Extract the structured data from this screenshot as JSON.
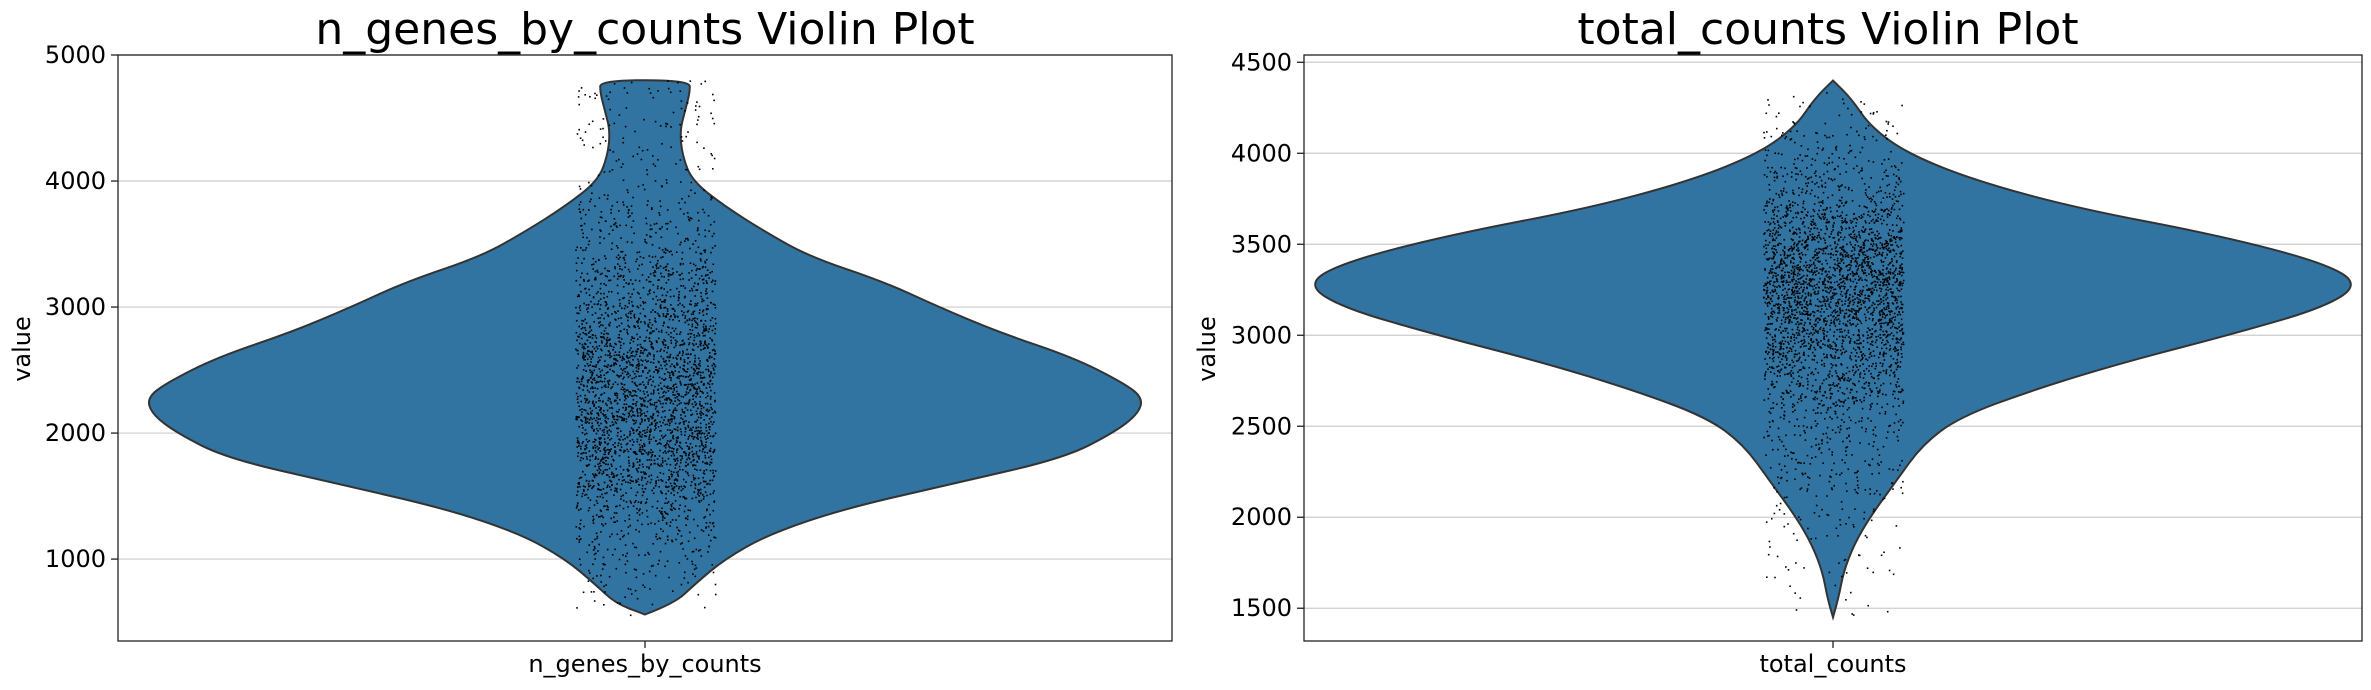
{
  "chart_data": [
    {
      "type": "violin",
      "title": "n_genes_by_counts Violin Plot",
      "xlabel": "",
      "ylabel": "value",
      "categories": [
        "n_genes_by_counts"
      ],
      "ylim": [
        350,
        5000
      ],
      "yticks": [
        1000,
        2000,
        3000,
        4000,
        5000
      ],
      "grid": true,
      "color": "#3274a1",
      "strip_color": "#000000",
      "min": 560,
      "max": 4800,
      "median": 2300,
      "density": [
        [
          560,
          0.0
        ],
        [
          650,
          0.06
        ],
        [
          800,
          0.1
        ],
        [
          1000,
          0.16
        ],
        [
          1200,
          0.25
        ],
        [
          1400,
          0.4
        ],
        [
          1600,
          0.62
        ],
        [
          1800,
          0.84
        ],
        [
          2000,
          0.94
        ],
        [
          2150,
          0.99
        ],
        [
          2280,
          1.0
        ],
        [
          2400,
          0.96
        ],
        [
          2600,
          0.86
        ],
        [
          2800,
          0.71
        ],
        [
          3000,
          0.59
        ],
        [
          3200,
          0.48
        ],
        [
          3400,
          0.33
        ],
        [
          3600,
          0.24
        ],
        [
          3800,
          0.16
        ],
        [
          4000,
          0.095
        ],
        [
          4200,
          0.075
        ],
        [
          4400,
          0.07
        ],
        [
          4550,
          0.08
        ],
        [
          4700,
          0.09
        ],
        [
          4800,
          0.09
        ]
      ]
    },
    {
      "type": "violin",
      "title": "total_counts Violin Plot",
      "xlabel": "",
      "ylabel": "value",
      "categories": [
        "total_counts"
      ],
      "ylim": [
        1320,
        4540
      ],
      "yticks": [
        1500,
        2000,
        2500,
        3000,
        3500,
        4000,
        4500
      ],
      "grid": true,
      "color": "#3274a1",
      "strip_color": "#000000",
      "min": 1450,
      "max": 4400,
      "median": 3250,
      "density": [
        [
          1450,
          0.0
        ],
        [
          1550,
          0.01
        ],
        [
          1700,
          0.02
        ],
        [
          1850,
          0.04
        ],
        [
          2000,
          0.07
        ],
        [
          2200,
          0.12
        ],
        [
          2400,
          0.17
        ],
        [
          2550,
          0.24
        ],
        [
          2700,
          0.38
        ],
        [
          2850,
          0.55
        ],
        [
          3000,
          0.75
        ],
        [
          3150,
          0.93
        ],
        [
          3280,
          1.0
        ],
        [
          3400,
          0.93
        ],
        [
          3550,
          0.73
        ],
        [
          3700,
          0.46
        ],
        [
          3850,
          0.27
        ],
        [
          4000,
          0.14
        ],
        [
          4150,
          0.07
        ],
        [
          4300,
          0.035
        ],
        [
          4400,
          0.0
        ]
      ]
    }
  ]
}
